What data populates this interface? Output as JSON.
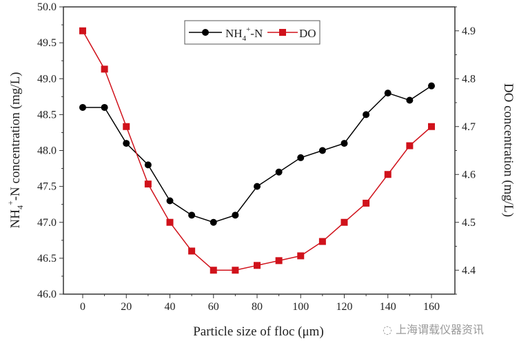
{
  "chart_data": {
    "type": "line",
    "x": [
      0,
      10,
      20,
      30,
      40,
      50,
      60,
      70,
      80,
      90,
      100,
      110,
      120,
      130,
      140,
      150,
      160
    ],
    "xlabel": "Particle size of floc (μm)",
    "xticks": [
      0,
      20,
      40,
      60,
      80,
      100,
      120,
      140,
      160
    ],
    "xlim": [
      -5,
      170
    ],
    "ylabel_left": "NH4+-N concentration (mg/L)",
    "ylabel_left_parts": {
      "a": "NH",
      "sub": "4",
      "sup": "+",
      "b": "-N concentration (mg/L)"
    },
    "ylim_left": [
      46.0,
      50.0
    ],
    "yticks_left": [
      "46.0",
      "46.5",
      "47.0",
      "47.5",
      "48.0",
      "48.5",
      "49.0",
      "49.5",
      "50.0"
    ],
    "ylabel_right": "DO concentration (mg/L)",
    "ylim_right": [
      4.35,
      4.95
    ],
    "yticks_right": [
      "4.4",
      "4.5",
      "4.6",
      "4.7",
      "4.8",
      "4.9"
    ],
    "legend_position": "top-center",
    "series": [
      {
        "name": "NH4+-N",
        "axis": "left",
        "color": "#000000",
        "marker": "circle",
        "values": [
          48.6,
          48.6,
          48.1,
          47.8,
          47.3,
          47.1,
          47.0,
          47.1,
          47.5,
          47.7,
          47.9,
          48.0,
          48.1,
          48.5,
          48.8,
          48.7,
          48.9
        ]
      },
      {
        "name": "DO",
        "axis": "right",
        "color": "#d0121b",
        "marker": "square",
        "values": [
          4.9,
          4.82,
          4.7,
          4.58,
          4.5,
          4.44,
          4.4,
          4.4,
          4.41,
          4.42,
          4.43,
          4.46,
          4.5,
          4.54,
          4.6,
          4.66,
          4.7
        ]
      }
    ]
  },
  "legend": {
    "nh4_a": "NH",
    "nh4_sub": "4",
    "nh4_sup": "+",
    "nh4_b": "-N",
    "do": "DO"
  },
  "watermark": "上海谓载仪器资讯"
}
